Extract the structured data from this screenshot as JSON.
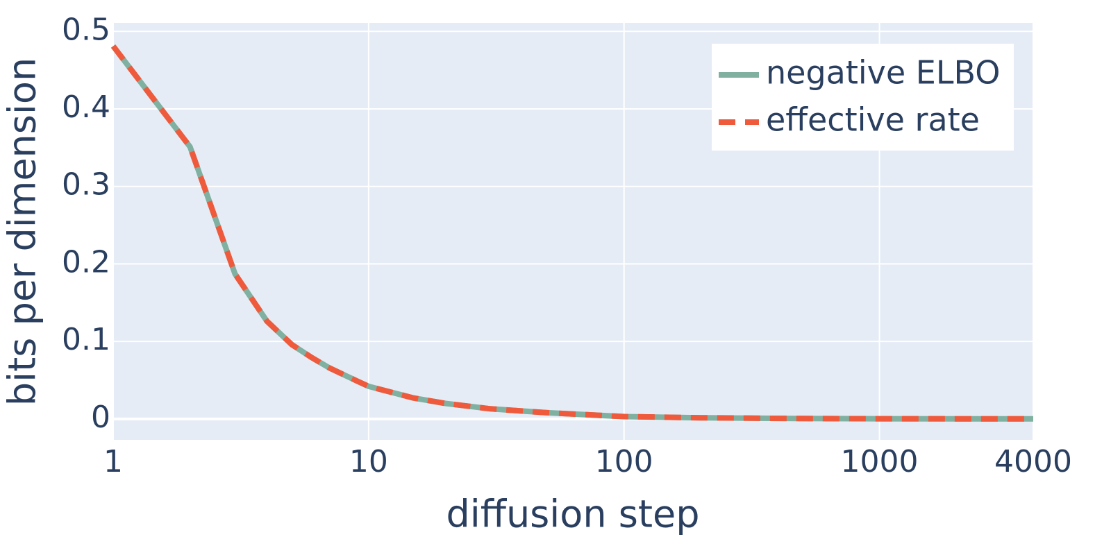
{
  "chart_data": {
    "type": "line",
    "x_label": "diffusion step",
    "y_label": "bits per dimension",
    "x": [
      1,
      2,
      3,
      4,
      5,
      6,
      7,
      8,
      9,
      10,
      15,
      20,
      30,
      50,
      100,
      200,
      500,
      1000,
      4000
    ],
    "series": [
      {
        "name": "negative ELBO",
        "color": "#7fb0a0",
        "dash": "solid",
        "values": [
          0.481,
          0.351,
          0.187,
          0.126,
          0.096,
          0.079,
          0.066,
          0.057,
          0.049,
          0.042,
          0.027,
          0.02,
          0.013,
          0.008,
          0.003,
          0.0015,
          0.0005,
          0.0002,
          0
        ]
      },
      {
        "name": "effective rate",
        "color": "#ef5a3c",
        "dash": "dash",
        "values": [
          0.481,
          0.351,
          0.187,
          0.126,
          0.096,
          0.079,
          0.066,
          0.057,
          0.049,
          0.042,
          0.027,
          0.02,
          0.013,
          0.008,
          0.003,
          0.0015,
          0.0005,
          0.0002,
          0
        ]
      }
    ],
    "xscale": "log",
    "xlim": [
      1,
      4000
    ],
    "xticks": [
      1,
      10,
      100,
      1000,
      4000
    ],
    "ylim": [
      -0.027,
      0.511
    ],
    "yticks": [
      0,
      0.1,
      0.2,
      0.3,
      0.4,
      0.5
    ],
    "grid": true,
    "legend": "top-right"
  }
}
